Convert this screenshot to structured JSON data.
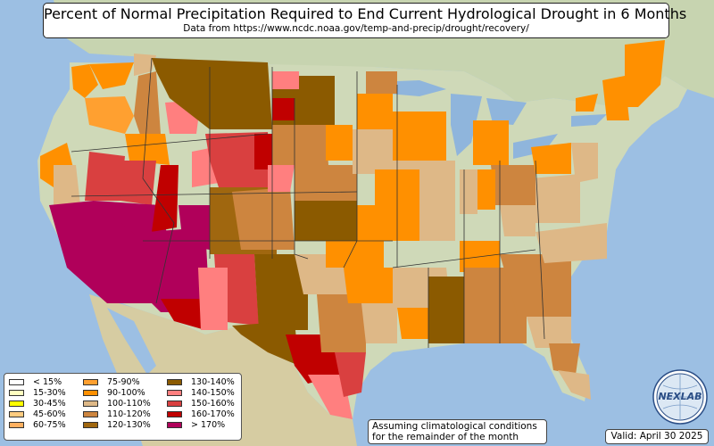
{
  "title": "Percent of Normal Precipitation Required to End Current Hydrological Drought in 6 Months",
  "subtitle": "Data from https://www.ncdc.noaa.gov/temp-and-precip/drought/recovery/",
  "legend": [
    {
      "label": "< 15%",
      "color": "#ffffff"
    },
    {
      "label": "15-30%",
      "color": "#ffffc0"
    },
    {
      "label": "30-45%",
      "color": "#ffff00"
    },
    {
      "label": "45-60%",
      "color": "#ffcc80"
    },
    {
      "label": "60-75%",
      "color": "#ffb060"
    },
    {
      "label": "75-90%",
      "color": "#ffa030"
    },
    {
      "label": "90-100%",
      "color": "#ff9000"
    },
    {
      "label": "100-110%",
      "color": "#deb887"
    },
    {
      "label": "110-120%",
      "color": "#cd853f"
    },
    {
      "label": "120-130%",
      "color": "#a0670f"
    },
    {
      "label": "130-140%",
      "color": "#8b5a00"
    },
    {
      "label": "140-150%",
      "color": "#ff7f7f"
    },
    {
      "label": "150-160%",
      "color": "#d94040"
    },
    {
      "label": "160-170%",
      "color": "#c00000"
    },
    {
      "label": "> 170%",
      "color": "#b0005a"
    }
  ],
  "note_line1": "Assuming climatological conditions",
  "note_line2": "for the remainder of the month",
  "valid": "Valid: April 30 2025",
  "logo_text": "NEXLAB",
  "colors": {
    "ocean": "#9cbfe3",
    "land": "#c9d6b3",
    "mexico": "#d8cfa8",
    "lake": "#8fb5dc"
  }
}
